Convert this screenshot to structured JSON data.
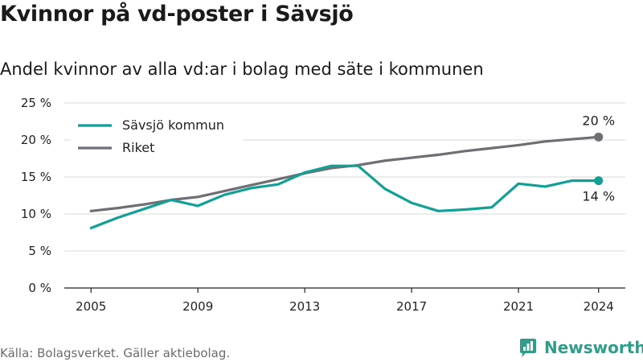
{
  "title": "Kvinnor på vd-poster i Sävsjö",
  "subtitle": "Andel kvinnor av alla vd:ar i bolag med säte i kommunen",
  "source": "Källa: Bolagsverket. Gäller aktiebolag.",
  "logo_text": "Newsworthy",
  "colors": {
    "savsjo": "#12a096",
    "riket": "#6e6e73",
    "grid": "#d9d9d9",
    "axis": "#222222"
  },
  "chart_data": {
    "type": "line",
    "title": "Kvinnor på vd-poster i Sävsjö",
    "subtitle": "Andel kvinnor av alla vd:ar i bolag med säte i kommunen",
    "x": [
      2005,
      2006,
      2007,
      2008,
      2009,
      2010,
      2011,
      2012,
      2013,
      2014,
      2015,
      2016,
      2017,
      2018,
      2019,
      2020,
      2021,
      2022,
      2023,
      2024
    ],
    "x_ticks": [
      2005,
      2009,
      2013,
      2017,
      2021,
      2024
    ],
    "y_ticks": [
      0,
      5,
      10,
      15,
      20,
      25
    ],
    "y_tick_labels": [
      "0 %",
      "5 %",
      "10 %",
      "15 %",
      "20 %",
      "25 %"
    ],
    "ylim": [
      0,
      25
    ],
    "xlim": [
      2004,
      2025
    ],
    "grid": "horizontal",
    "legend_position": "top-left",
    "series": [
      {
        "name": "Sävsjö kommun",
        "color": "#12a096",
        "values": [
          8.1,
          9.5,
          10.7,
          11.9,
          11.1,
          12.6,
          13.5,
          14.0,
          15.6,
          16.5,
          16.5,
          13.4,
          11.5,
          10.4,
          10.6,
          10.9,
          14.1,
          13.7,
          14.5,
          14.5
        ]
      },
      {
        "name": "Riket",
        "color": "#6e6e73",
        "values": [
          10.4,
          10.8,
          11.3,
          11.9,
          12.3,
          13.1,
          13.9,
          14.7,
          15.5,
          16.2,
          16.6,
          17.2,
          17.6,
          18.0,
          18.5,
          18.9,
          19.3,
          19.8,
          20.1,
          20.4
        ]
      }
    ],
    "end_labels": [
      {
        "series": "Riket",
        "text": "20 %"
      },
      {
        "series": "Sävsjö kommun",
        "text": "14 %"
      }
    ]
  }
}
